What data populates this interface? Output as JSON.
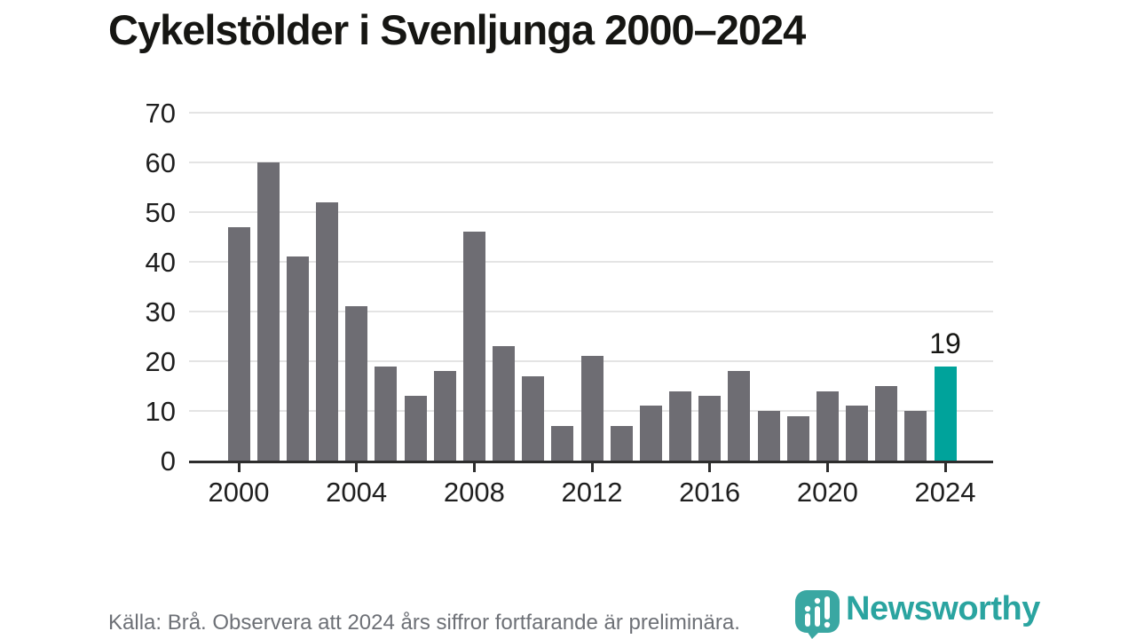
{
  "title": "Cykelstölder i Svenljunga 2000–2024",
  "footer": {
    "source_note": "Källa: Brå. Observera att 2024 års siffror fortfarande är preliminära."
  },
  "logo": {
    "name": "Newsworthy"
  },
  "chart_data": {
    "type": "bar",
    "title": "Cykelstölder i Svenljunga 2000–2024",
    "categories": [
      2000,
      2001,
      2002,
      2003,
      2004,
      2005,
      2006,
      2007,
      2008,
      2009,
      2010,
      2011,
      2012,
      2013,
      2014,
      2015,
      2016,
      2017,
      2018,
      2019,
      2020,
      2021,
      2022,
      2023,
      2024
    ],
    "values": [
      47,
      60,
      41,
      52,
      31,
      19,
      13,
      18,
      46,
      23,
      17,
      7,
      21,
      7,
      11,
      14,
      13,
      18,
      10,
      9,
      14,
      11,
      15,
      10,
      19
    ],
    "xlabel": "",
    "ylabel": "",
    "ylim": [
      0,
      70
    ],
    "yticks": [
      0,
      10,
      20,
      30,
      40,
      50,
      60,
      70
    ],
    "xticks": [
      2000,
      2004,
      2008,
      2012,
      2016,
      2020,
      2024
    ],
    "grid": true,
    "legend_position": "none",
    "bar_color": "#6e6d73",
    "highlight_color": "#00a39b",
    "highlight_category": 2024,
    "annotation": {
      "category": 2024,
      "text": "19"
    }
  }
}
